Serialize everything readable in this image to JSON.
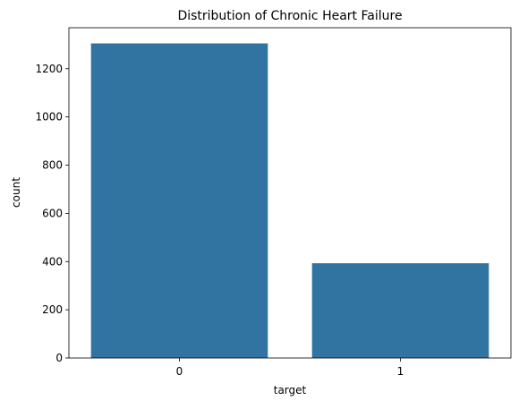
{
  "chart_data": {
    "type": "bar",
    "title": "Distribution of Chronic Heart Failure",
    "xlabel": "target",
    "ylabel": "count",
    "categories": [
      "0",
      "1"
    ],
    "values": [
      1305,
      393
    ],
    "ylim": [
      0,
      1370
    ],
    "yticks": [
      0,
      200,
      400,
      600,
      800,
      1000,
      1200
    ],
    "bar_color": "#3274a1",
    "grid": false,
    "legend": "none"
  }
}
